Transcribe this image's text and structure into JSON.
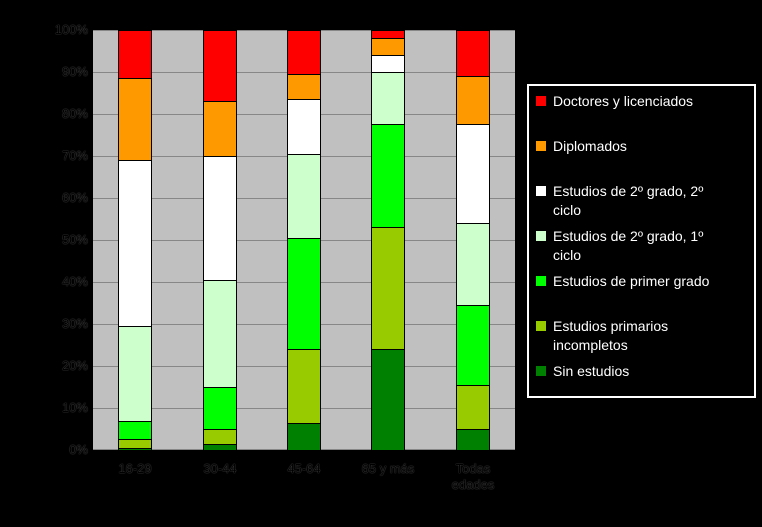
{
  "chart_data": {
    "type": "bar",
    "stacked": true,
    "stack_direction": "bottom-to-top",
    "title": "",
    "categories": [
      "16-29",
      "30-44",
      "45-64",
      "65 y más",
      "Todas edades"
    ],
    "series": [
      {
        "name": "Sin estudios",
        "color": "#008000",
        "values": [
          0.5,
          1.5,
          6.5,
          24,
          5
        ]
      },
      {
        "name": "Estudios primarios incompletos",
        "color": "#99CC00",
        "values": [
          2,
          3.5,
          17.5,
          29,
          10.5
        ]
      },
      {
        "name": "Estudios de primer grado",
        "color": "#00FF00",
        "values": [
          4.5,
          10,
          26.5,
          24.5,
          19
        ]
      },
      {
        "name": "Estudios de 2º grado, 1º ciclo",
        "color": "#CCFFCC",
        "values": [
          22.5,
          25.5,
          20,
          12.5,
          19.5
        ]
      },
      {
        "name": "Estudios de 2º grado, 2º ciclo",
        "color": "#FFFFFF",
        "values": [
          39.5,
          29.5,
          13,
          4,
          23.5
        ]
      },
      {
        "name": "Diplomados",
        "color": "#FF9900",
        "values": [
          19.5,
          13,
          6,
          4,
          11.5
        ]
      },
      {
        "name": "Doctores y licenciados",
        "color": "#FF0000",
        "values": [
          11.5,
          17,
          10.5,
          2,
          11
        ]
      }
    ],
    "ylim": [
      0,
      100
    ],
    "y_tick_labels": [
      "100%",
      "90%",
      "80%",
      "70%",
      "60%",
      "50%",
      "40%",
      "30%",
      "20%",
      "10%",
      "0%"
    ],
    "x_tick_labels_display": [
      "16-29",
      "30-44",
      "45-64",
      "65 y más",
      "Todas\nedades"
    ],
    "grid": true,
    "legend_position": "right",
    "plot_background": "#C0C0C0",
    "gridline_color": "#878787",
    "bar_border_color": "#000000",
    "page_background": "#000000"
  },
  "legend": {
    "border_color": "#FFFFFF",
    "text_color": "#FFFFFF",
    "items": [
      {
        "label": "Doctores y licenciados",
        "color": "#FF0000"
      },
      {
        "label": "Diplomados",
        "color": "#FF9900"
      },
      {
        "label": "Estudios de 2º grado, 2º\nciclo",
        "color": "#FFFFFF"
      },
      {
        "label": "Estudios de 2º grado, 1º\nciclo",
        "color": "#CCFFCC"
      },
      {
        "label": "Estudios de primer grado",
        "color": "#00FF00"
      },
      {
        "label": "Estudios primarios\nincompletos",
        "color": "#99CC00"
      },
      {
        "label": "Sin estudios",
        "color": "#008000"
      }
    ]
  }
}
